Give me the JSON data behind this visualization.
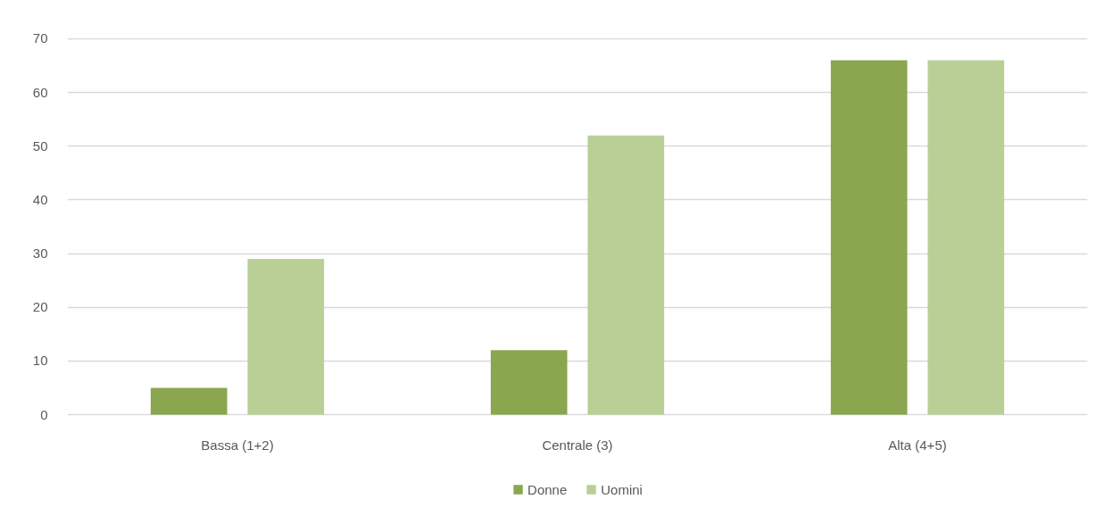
{
  "chart_data": {
    "type": "bar",
    "categories": [
      "Bassa (1+2)",
      "Centrale (3)",
      "Alta (4+5)"
    ],
    "series": [
      {
        "name": "Donne",
        "color": "#8aa64f",
        "values": [
          5,
          12,
          66
        ]
      },
      {
        "name": "Uomini",
        "color": "#b9cf96",
        "values": [
          29,
          52,
          66
        ]
      }
    ],
    "ylim": [
      0,
      70
    ],
    "yticks": [
      0,
      10,
      20,
      30,
      40,
      50,
      60,
      70
    ],
    "grid": "y",
    "legend": "bottom"
  }
}
